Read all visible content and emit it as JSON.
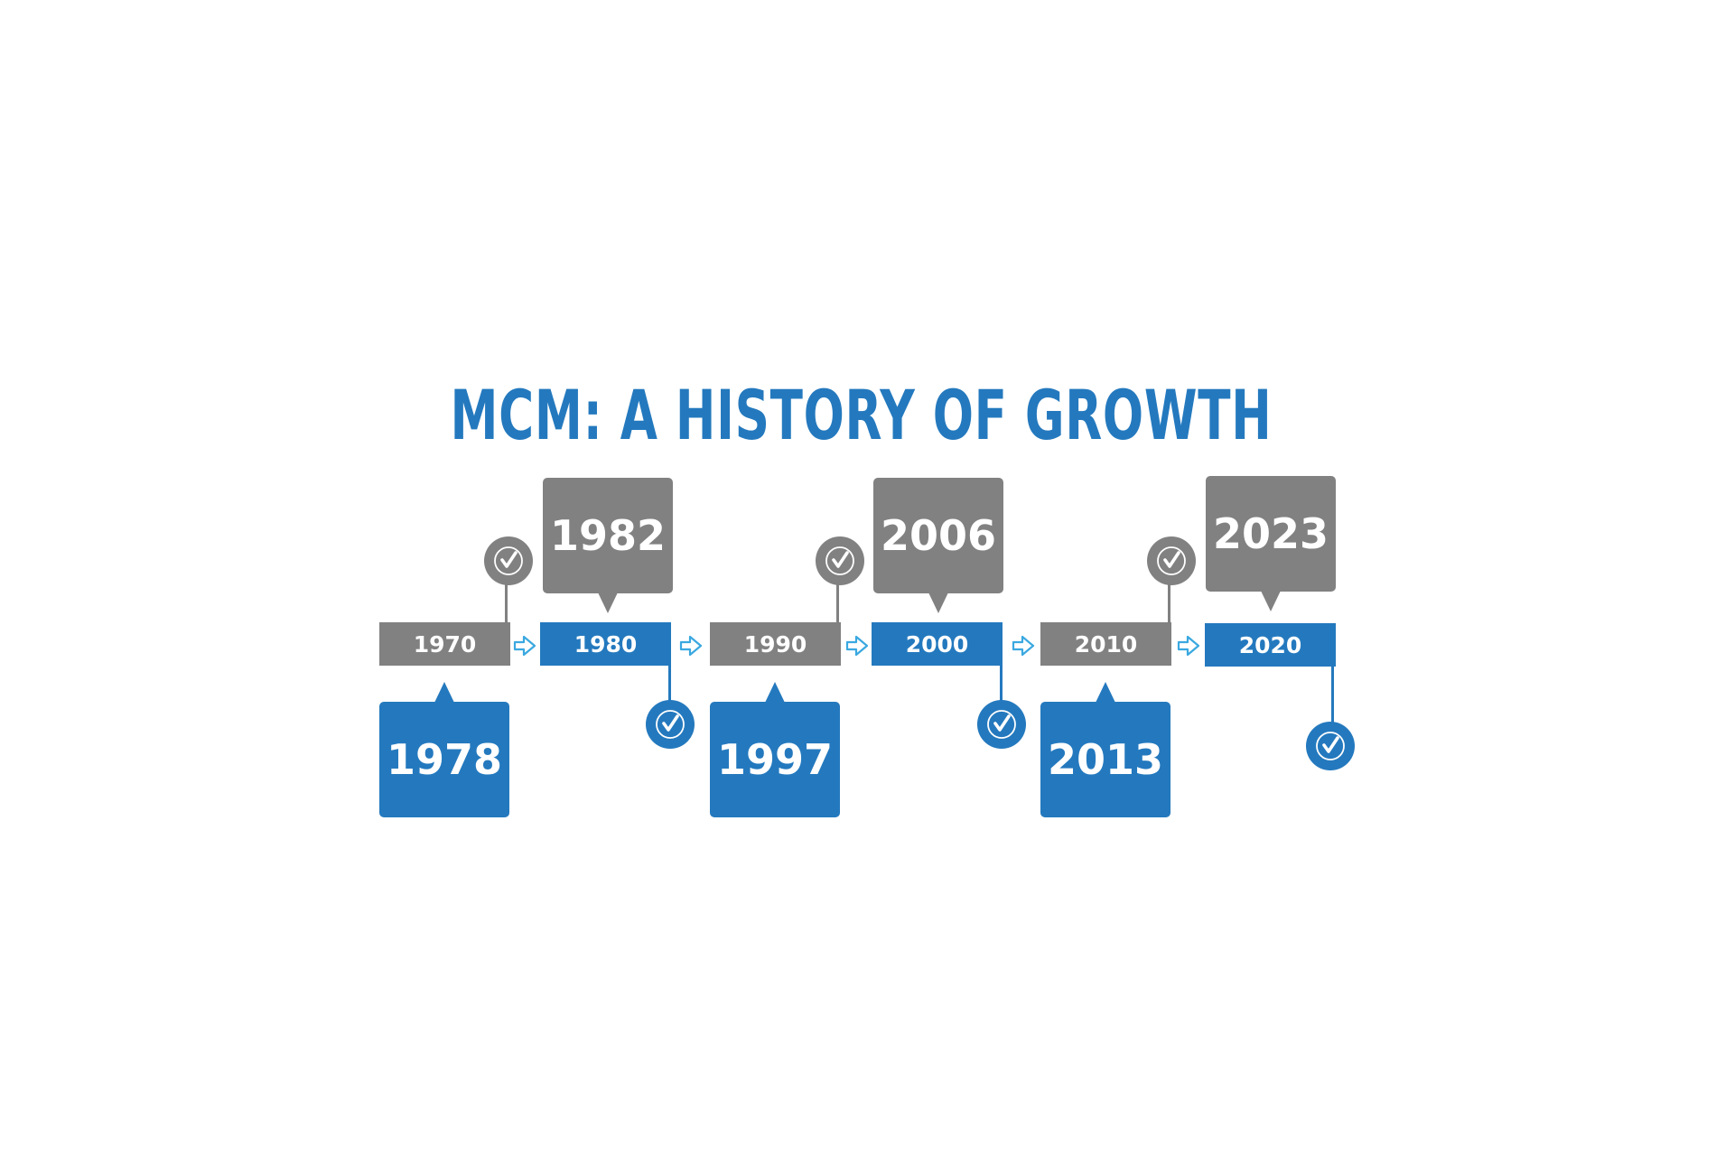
{
  "title": "MCM: A HISTORY OF GROWTH",
  "colors": {
    "blue": "#2479BE",
    "grey": "#818181",
    "arrow": "#3AA8E0"
  },
  "icons": {
    "milestone_marker": "check-circle-icon",
    "flow_arrow": "right-arrow-icon"
  },
  "timeline": {
    "decades": [
      "1970",
      "1980",
      "1990",
      "2000",
      "2010",
      "2020"
    ],
    "milestones": [
      "1978",
      "1982",
      "1997",
      "2006",
      "2013",
      "2023"
    ]
  }
}
